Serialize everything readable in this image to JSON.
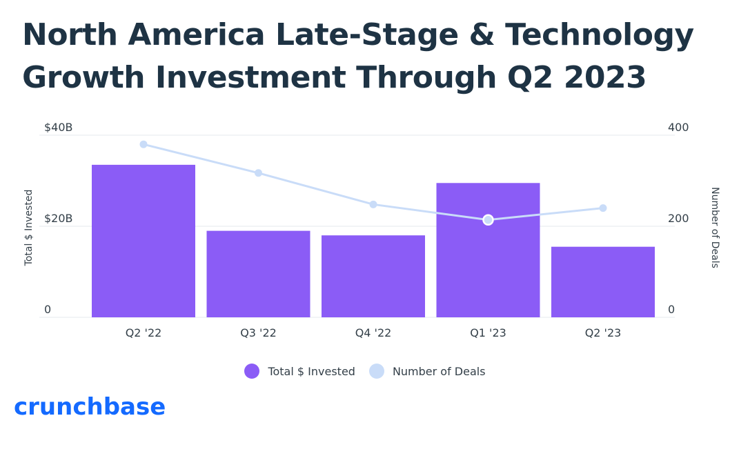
{
  "title": {
    "line1": "North America Late-Stage & Technology",
    "line2": "Growth Investment Through Q2 2023"
  },
  "logo": "crunchbase",
  "colors": {
    "bar": "#8b5cf6",
    "line": "#c9dcf8",
    "title": "#1e3344",
    "logo": "#146aff",
    "grid": "#e5e8ec"
  },
  "legend": {
    "bar_label": "Total $ Invested",
    "line_label": "Number of Deals"
  },
  "chart_data": {
    "type": "bar",
    "categories": [
      "Q2 '22",
      "Q3 '22",
      "Q4 '22",
      "Q1 '23",
      "Q2 '23"
    ],
    "series": [
      {
        "name": "Total $ Invested",
        "type": "bar",
        "axis": "left",
        "unit": "$B",
        "values": [
          33.5,
          19,
          18,
          29.5,
          15.5
        ]
      },
      {
        "name": "Number of Deals",
        "type": "line",
        "axis": "right",
        "values": [
          380,
          317,
          248,
          214,
          240
        ]
      }
    ],
    "ylabel": "Total $ Invested",
    "y2label": "Number of Deals",
    "ylim": [
      0,
      40
    ],
    "y2lim": [
      0,
      400
    ],
    "yticks": [
      "0",
      "$20B",
      "$40B"
    ],
    "y2ticks": [
      "0",
      "200",
      "400"
    ],
    "highlight_index": 3
  }
}
